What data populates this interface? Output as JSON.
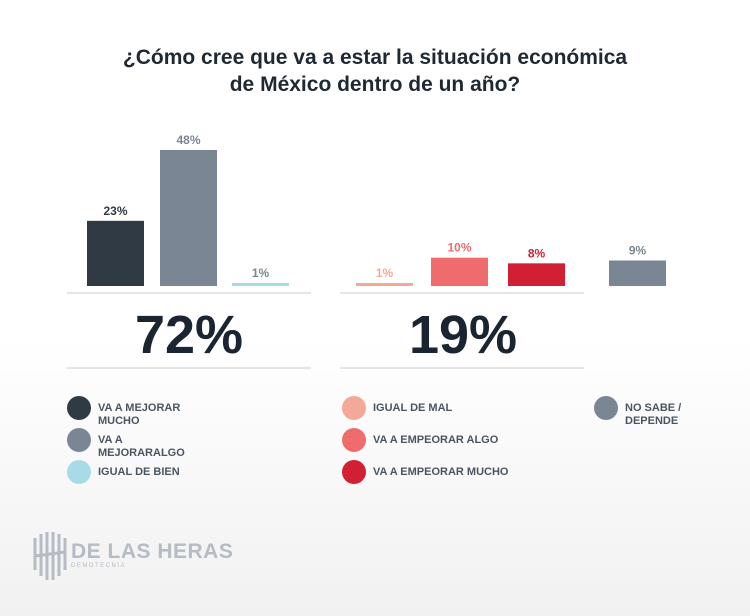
{
  "title_lines": [
    "¿Cómo cree que va a estar la situación económica",
    "de México dentro de un año?"
  ],
  "chart_data": {
    "type": "bar",
    "title": "¿Cómo cree que va a estar la situación económica de México dentro de un año?",
    "ylim": [
      0,
      50
    ],
    "grid": false,
    "legend_placement": "bottom",
    "groups": [
      {
        "total_label": "72%",
        "bars": [
          {
            "name": "VA A MEJORAR MUCHO",
            "value": 23,
            "label": "23%",
            "color": "#2f3a45",
            "label_color": "#2f3a45"
          },
          {
            "name": "VA A MEJORARALGO",
            "value": 48,
            "label": "48%",
            "color": "#7a8694",
            "label_color": "#7a8694"
          },
          {
            "name": "IGUAL DE BIEN",
            "value": 1,
            "label": "1%",
            "color": "#a7dbe8",
            "label_color": "#7a8694"
          }
        ]
      },
      {
        "total_label": "19%",
        "bars": [
          {
            "name": "IGUAL DE MAL",
            "value": 1,
            "label": "1%",
            "color": "#f4a898",
            "label_color": "#f4a898"
          },
          {
            "name": "VA A EMPEORAR ALGO",
            "value": 10,
            "label": "10%",
            "color": "#ef6c6c",
            "label_color": "#ef6c6c"
          },
          {
            "name": "VA A EMPEORAR MUCHO",
            "value": 8,
            "label": "8%",
            "color": "#d11f33",
            "label_color": "#d11f33"
          }
        ]
      },
      {
        "total_label": "",
        "bars": [
          {
            "name": "NO SABE / DEPENDE",
            "value": 9,
            "label": "9%",
            "color": "#7a8694",
            "label_color": "#7a8694"
          }
        ]
      }
    ]
  },
  "legend": {
    "left": [
      {
        "label": "VA A MEJORAR MUCHO",
        "color": "#2f3a45"
      },
      {
        "label": "VA A MEJORARALGO",
        "color": "#7a8694"
      },
      {
        "label": "IGUAL DE BIEN",
        "color": "#a7dbe8"
      }
    ],
    "middle": [
      {
        "label": "IGUAL DE MAL",
        "color": "#f4a898"
      },
      {
        "label": "VA A EMPEORAR ALGO",
        "color": "#ef6c6c"
      },
      {
        "label": "VA A EMPEORAR MUCHO",
        "color": "#d11f33"
      }
    ],
    "right": [
      {
        "label": "NO SABE / DEPENDE",
        "color": "#7a8694"
      }
    ]
  },
  "logo": {
    "name": "DE LAS HERAS",
    "sub": "DEMOTECNIA",
    "icon": "building-columns-icon"
  }
}
